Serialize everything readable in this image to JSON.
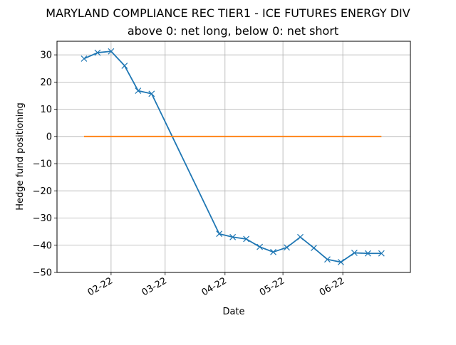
{
  "chart_data": {
    "type": "line",
    "title": "MARYLAND COMPLIANCE REC TIER1 - ICE FUTURES ENERGY DIV",
    "subtitle": "above 0: net long, below 0: net short",
    "xlabel": "Date",
    "ylabel": "Hedge fund positioning",
    "ylim": [
      -50,
      35
    ],
    "yticks": [
      30,
      20,
      10,
      0,
      -10,
      -20,
      -30,
      -40,
      -50
    ],
    "ytick_labels": [
      "30",
      "20",
      "10",
      "0",
      "−10",
      "−20",
      "−30",
      "−40",
      "−50"
    ],
    "xlim": [
      "2022-01-04",
      "2022-07-06"
    ],
    "xticks": [
      "2022-02-01",
      "2022-03-01",
      "2022-04-01",
      "2022-05-01",
      "2022-06-01"
    ],
    "xtick_labels": [
      "02-22",
      "03-22",
      "04-22",
      "05-22",
      "06-22"
    ],
    "grid": true,
    "colors": {
      "series": "#1f77b4",
      "zero_line": "#ff7f0e",
      "grid": "#b0b0b0"
    },
    "series": [
      {
        "marker": "x",
        "points": [
          {
            "x": "2022-01-18",
            "y": 28.6
          },
          {
            "x": "2022-01-25",
            "y": 30.8
          },
          {
            "x": "2022-02-01",
            "y": 31.3
          },
          {
            "x": "2022-02-08",
            "y": 26.0
          },
          {
            "x": "2022-02-15",
            "y": 16.8
          },
          {
            "x": "2022-02-22",
            "y": 15.7
          },
          {
            "x": "2022-03-29",
            "y": -35.8
          },
          {
            "x": "2022-04-05",
            "y": -37.0
          },
          {
            "x": "2022-04-12",
            "y": -37.7
          },
          {
            "x": "2022-04-19",
            "y": -40.6
          },
          {
            "x": "2022-04-26",
            "y": -42.5
          },
          {
            "x": "2022-05-03",
            "y": -40.8
          },
          {
            "x": "2022-05-10",
            "y": -37.0
          },
          {
            "x": "2022-05-17",
            "y": -41.0
          },
          {
            "x": "2022-05-24",
            "y": -45.2
          },
          {
            "x": "2022-05-31",
            "y": -46.2
          },
          {
            "x": "2022-06-07",
            "y": -42.8
          },
          {
            "x": "2022-06-14",
            "y": -43.0
          },
          {
            "x": "2022-06-21",
            "y": -43.0
          }
        ]
      },
      {
        "points": [
          {
            "x": "2022-01-18",
            "y": 0
          },
          {
            "x": "2022-06-21",
            "y": 0
          }
        ]
      }
    ]
  }
}
